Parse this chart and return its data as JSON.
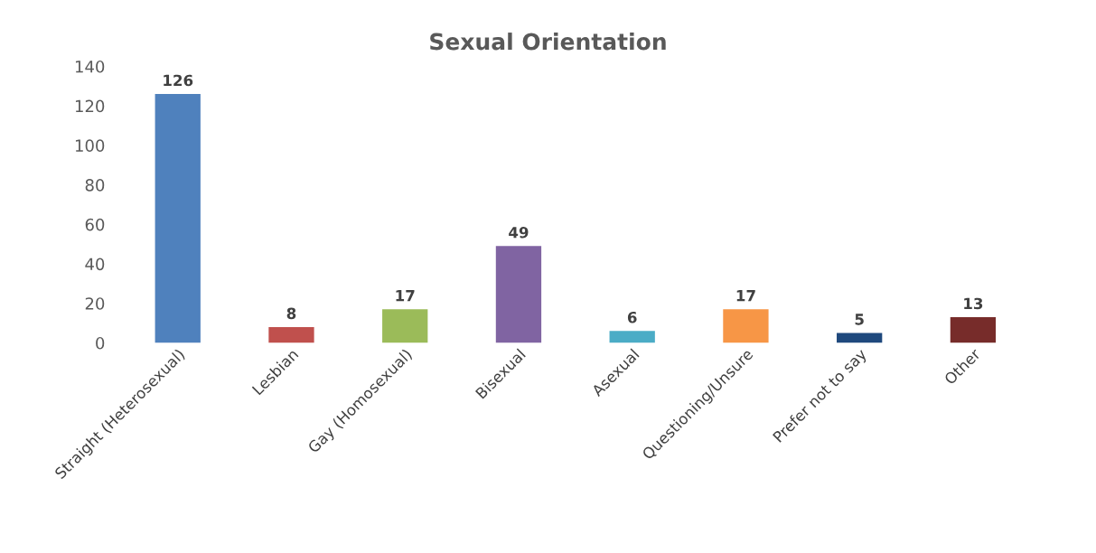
{
  "chart_data": {
    "type": "bar",
    "title": "Sexual Orientation",
    "categories": [
      "Straight (Heterosexual)",
      "Lesbian",
      "Gay (Homosexual)",
      "Bisexual",
      "Asexual",
      "Questioning/Unsure",
      "Prefer not to say",
      "Other"
    ],
    "values": [
      126,
      8,
      17,
      49,
      6,
      17,
      5,
      13
    ],
    "colors": [
      "#4f81bd",
      "#c0504d",
      "#9bbb59",
      "#8064a2",
      "#4bacc6",
      "#f79646",
      "#1f497d",
      "#772c2a"
    ],
    "ylim": [
      0,
      140
    ],
    "yticks": [
      0,
      20,
      40,
      60,
      80,
      100,
      120,
      140
    ],
    "grid": false,
    "data_labels": true
  }
}
